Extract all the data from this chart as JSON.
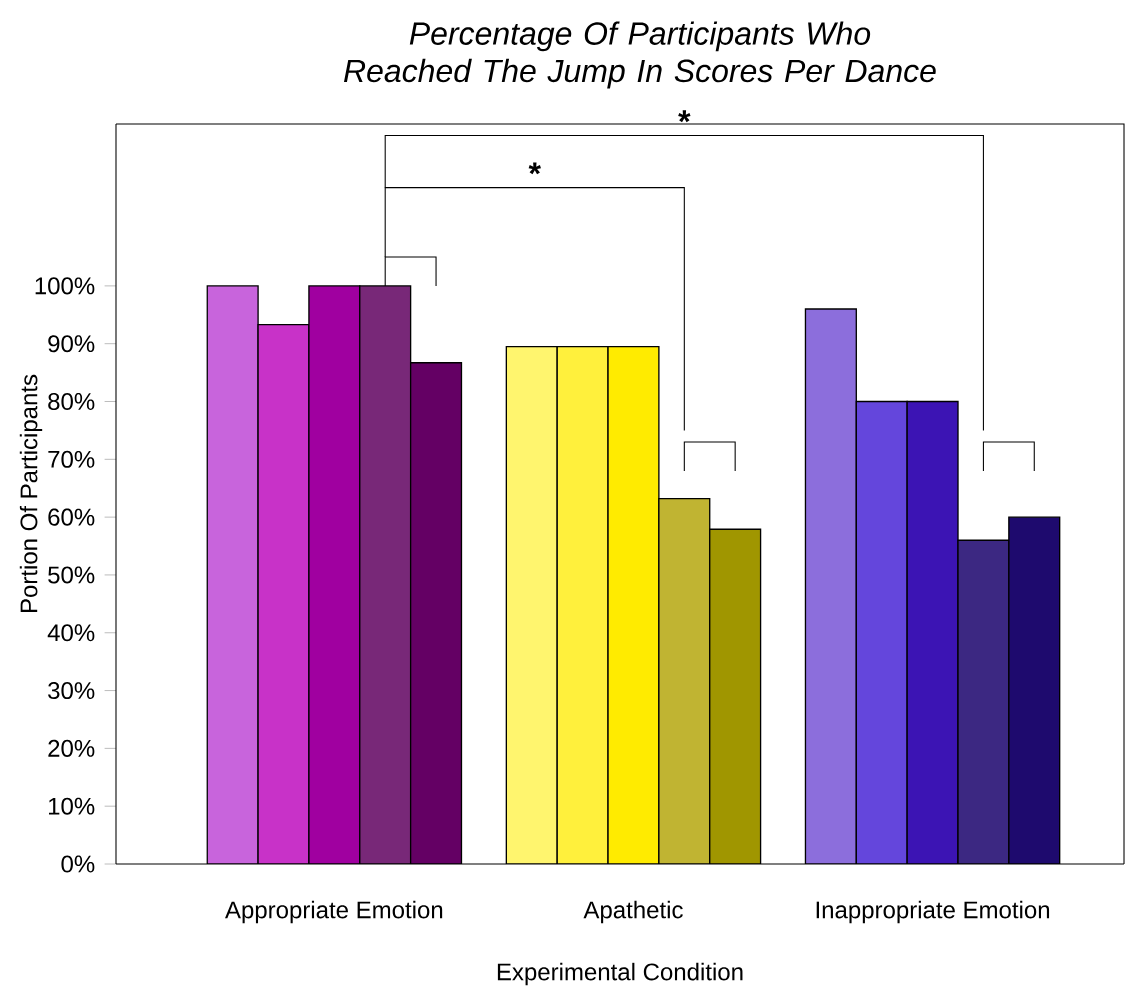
{
  "chart_data": {
    "type": "bar",
    "title": "Percentage Of Participants Who Reached The Jump In Scores Per Dance",
    "xlabel": "Experimental Condition",
    "ylabel": "Portion Of Participants",
    "categories": [
      "Appropriate Emotion",
      "Apathetic",
      "Inappropriate Emotion"
    ],
    "series": [
      {
        "colors": [
          "#c864dc",
          "#fff56e",
          "#8c6edc"
        ],
        "values": [
          100,
          89.5,
          96
        ]
      },
      {
        "colors": [
          "#c832c8",
          "#fff03c",
          "#6446dc"
        ],
        "values": [
          93.3,
          89.5,
          80
        ]
      },
      {
        "colors": [
          "#a000a0",
          "#ffeb00",
          "#3c14b4"
        ],
        "values": [
          100,
          89.5,
          80
        ]
      },
      {
        "colors": [
          "#782878",
          "#c0b432",
          "#3c2882"
        ],
        "values": [
          100,
          63.2,
          56
        ]
      },
      {
        "colors": [
          "#640064",
          "#a09600",
          "#1e0a6e"
        ],
        "values": [
          86.7,
          57.9,
          60
        ]
      }
    ],
    "ylim": [
      0,
      128
    ],
    "yticks": [
      {
        "value": 0,
        "label": "0%"
      },
      {
        "value": 10,
        "label": "10%"
      },
      {
        "value": 20,
        "label": "20%"
      },
      {
        "value": 30,
        "label": "30%"
      },
      {
        "value": 40,
        "label": "40%"
      },
      {
        "value": 50,
        "label": "50%"
      },
      {
        "value": 60,
        "label": "60%"
      },
      {
        "value": 70,
        "label": "70%"
      },
      {
        "value": 80,
        "label": "80%"
      },
      {
        "value": 90,
        "label": "90%"
      },
      {
        "value": 100,
        "label": "100%"
      }
    ],
    "annotations": [
      "*",
      "*"
    ],
    "grid": false
  }
}
